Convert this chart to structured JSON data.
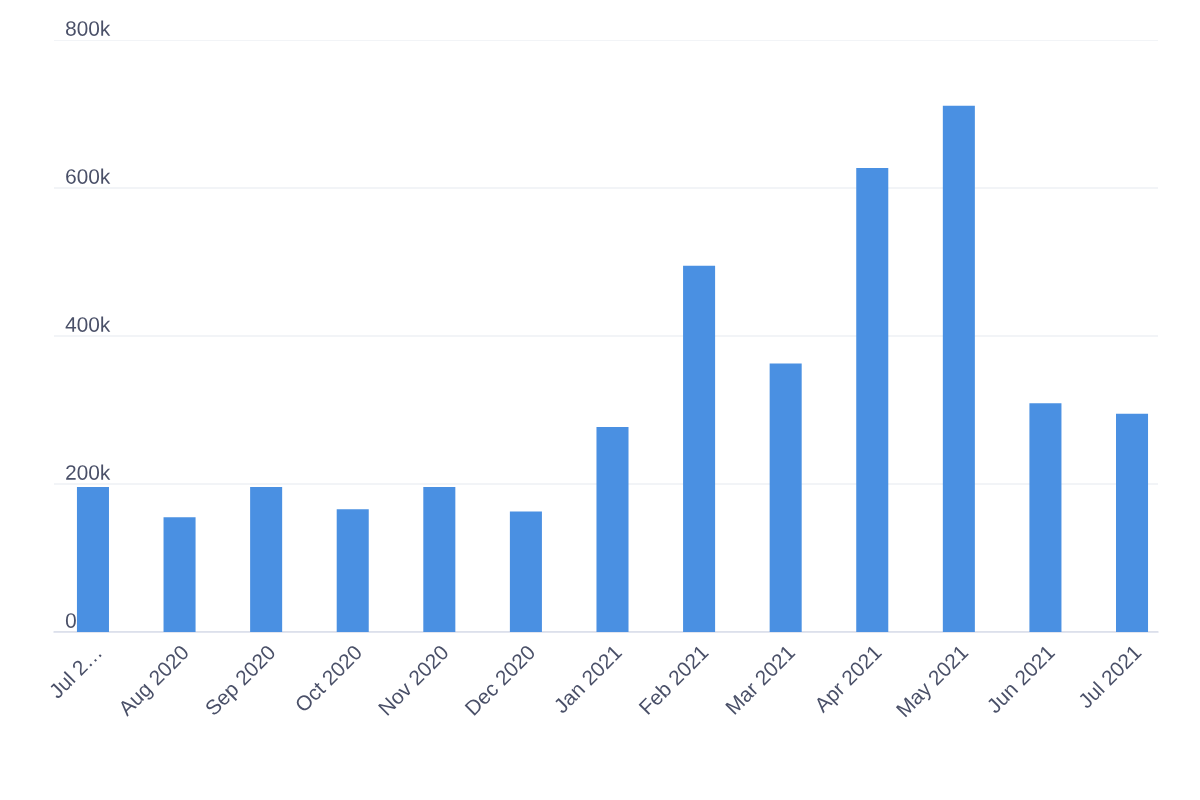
{
  "chart_data": {
    "type": "bar",
    "categories": [
      "Jul 2…",
      "Aug 2020",
      "Sep 2020",
      "Oct 2020",
      "Nov 2020",
      "Dec 2020",
      "Jan 2021",
      "Feb 2021",
      "Mar 2021",
      "Apr 2021",
      "May 2021",
      "Jun 2021",
      "Jul 2021"
    ],
    "values": [
      196000,
      155000,
      196000,
      166000,
      196000,
      163000,
      277000,
      495000,
      363000,
      627000,
      711000,
      309000,
      295000
    ],
    "color": "#4a90e2",
    "ylim": [
      0,
      800000
    ],
    "yticks": [
      0,
      {
        "value": 200000,
        "label": "200k"
      },
      {
        "value": 400000,
        "label": "400k"
      },
      {
        "value": 600000,
        "label": "600k"
      },
      {
        "value": 800000,
        "label": "800k"
      }
    ],
    "grid": "y"
  }
}
